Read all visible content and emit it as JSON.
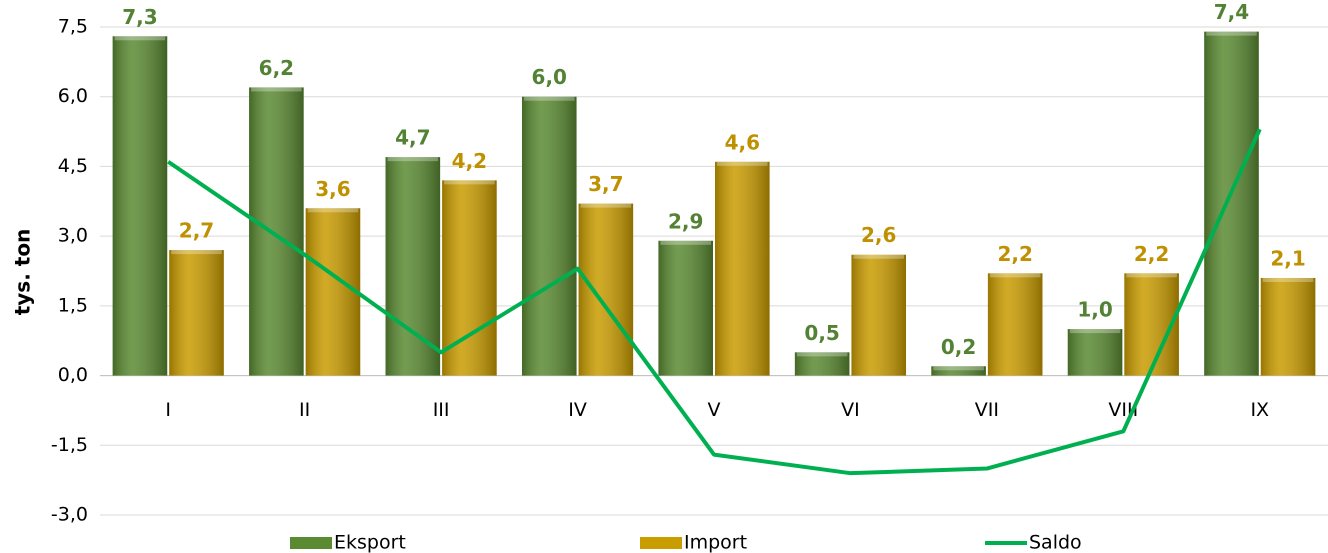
{
  "chart_data": {
    "type": "bar",
    "y_label": "tys. ton",
    "categories": [
      "I",
      "II",
      "III",
      "IV",
      "V",
      "VI",
      "VII",
      "VIII",
      "IX"
    ],
    "series": [
      {
        "name": "Eksport",
        "type": "bar",
        "color": "#5a8a32",
        "label_color": "#548235",
        "values": [
          7.3,
          6.2,
          4.7,
          6.0,
          2.9,
          0.5,
          0.2,
          1.0,
          7.4
        ],
        "value_labels": [
          "7,3",
          "6,2",
          "4,7",
          "6,0",
          "2,9",
          "0,5",
          "0,2",
          "1,0",
          "7,4"
        ]
      },
      {
        "name": "Import",
        "type": "bar",
        "color": "#c99c00",
        "label_color": "#bf9000",
        "values": [
          2.7,
          3.6,
          4.2,
          3.7,
          4.6,
          2.6,
          2.2,
          2.2,
          2.1
        ],
        "value_labels": [
          "2,7",
          "3,6",
          "4,2",
          "3,7",
          "4,6",
          "2,6",
          "2,2",
          "2,2",
          "2,1"
        ]
      },
      {
        "name": "Saldo",
        "type": "line",
        "color": "#00b050",
        "values": [
          4.6,
          2.6,
          0.5,
          2.3,
          -1.7,
          -2.1,
          -2.0,
          -1.2,
          5.3
        ]
      }
    ],
    "ylim": [
      -3,
      7.5
    ],
    "yticks": [
      {
        "value": -3,
        "label": "-3,0"
      },
      {
        "value": -1.5,
        "label": "-1,5"
      },
      {
        "value": 0,
        "label": "0,0"
      },
      {
        "value": 1.5,
        "label": "1,5"
      },
      {
        "value": 3,
        "label": "3,0"
      },
      {
        "value": 4.5,
        "label": "4,5"
      },
      {
        "value": 6,
        "label": "6,0"
      },
      {
        "value": 7.5,
        "label": "7,5"
      }
    ],
    "grid": true,
    "legend": "bottom"
  }
}
